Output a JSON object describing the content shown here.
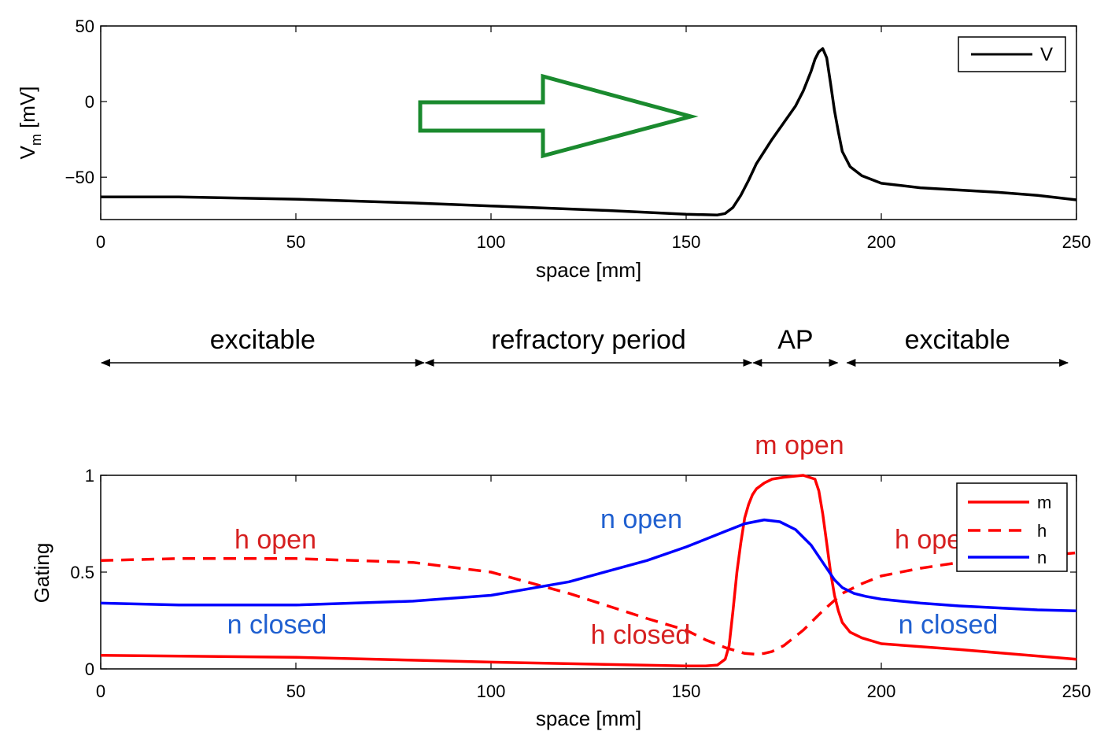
{
  "chart_data": [
    {
      "type": "line",
      "xlabel": "space [mm]",
      "ylabel": "V",
      "ylabel_sub": "m",
      "ylabel_unit": " [mV]",
      "xlim": [
        0,
        250
      ],
      "ylim": [
        -78,
        50
      ],
      "xticks": [
        0,
        50,
        100,
        150,
        200,
        250
      ],
      "yticks": [
        -50,
        0,
        50
      ],
      "grid": false,
      "legend_position": "top-right",
      "series": [
        {
          "name": "V",
          "color": "#000000",
          "dash": "solid",
          "x": [
            0,
            20,
            50,
            80,
            100,
            130,
            150,
            158,
            160,
            162,
            164,
            166,
            168,
            170,
            172,
            175,
            178,
            180,
            182,
            183,
            184,
            185,
            186,
            187,
            188,
            189,
            190,
            192,
            195,
            200,
            210,
            220,
            230,
            240,
            250
          ],
          "y": [
            -63,
            -63,
            -64.5,
            -67,
            -69,
            -72,
            -74.5,
            -75,
            -74,
            -70,
            -62,
            -52,
            -41,
            -33,
            -25,
            -14,
            -3,
            7,
            20,
            28,
            33,
            35,
            29,
            12,
            -6,
            -20,
            -33,
            -43,
            -49,
            -54,
            -57,
            -58.5,
            -60,
            -62,
            -65
          ]
        }
      ],
      "arrow": {
        "color": "#1a8a2e"
      }
    },
    {
      "type": "line",
      "xlabel": "space [mm]",
      "ylabel": "Gating",
      "xlim": [
        0,
        250
      ],
      "ylim": [
        0,
        1
      ],
      "xticks": [
        0,
        50,
        100,
        150,
        200,
        250
      ],
      "yticks": [
        0,
        0.5,
        1
      ],
      "ytick_labels": [
        "0",
        "0.5",
        "1"
      ],
      "grid": false,
      "legend_position": "top-right",
      "series": [
        {
          "name": "m",
          "color": "#ff0000",
          "dash": "solid",
          "x": [
            0,
            50,
            100,
            150,
            155,
            158,
            160,
            161,
            162,
            163,
            164,
            165,
            166,
            167,
            168,
            170,
            172,
            175,
            180,
            183,
            184,
            185,
            186,
            187,
            188,
            189,
            190,
            192,
            195,
            200,
            220,
            250
          ],
          "y": [
            0.07,
            0.06,
            0.035,
            0.015,
            0.015,
            0.02,
            0.05,
            0.12,
            0.3,
            0.5,
            0.65,
            0.78,
            0.85,
            0.9,
            0.93,
            0.96,
            0.98,
            0.99,
            1.0,
            0.98,
            0.92,
            0.8,
            0.65,
            0.5,
            0.38,
            0.3,
            0.24,
            0.19,
            0.16,
            0.13,
            0.1,
            0.05
          ]
        },
        {
          "name": "h",
          "color": "#ff0000",
          "dash": "dashed",
          "x": [
            0,
            20,
            50,
            80,
            100,
            120,
            140,
            150,
            155,
            160,
            165,
            168,
            170,
            172,
            175,
            180,
            185,
            190,
            195,
            200,
            210,
            220,
            230,
            240,
            250
          ],
          "y": [
            0.56,
            0.57,
            0.57,
            0.55,
            0.5,
            0.39,
            0.26,
            0.2,
            0.15,
            0.11,
            0.08,
            0.075,
            0.08,
            0.09,
            0.12,
            0.2,
            0.3,
            0.39,
            0.44,
            0.48,
            0.52,
            0.55,
            0.57,
            0.58,
            0.6
          ]
        },
        {
          "name": "n",
          "color": "#0000ff",
          "dash": "solid",
          "x": [
            0,
            20,
            50,
            80,
            100,
            120,
            140,
            150,
            160,
            165,
            170,
            174,
            178,
            182,
            185,
            188,
            190,
            193,
            196,
            200,
            210,
            220,
            230,
            240,
            250
          ],
          "y": [
            0.34,
            0.33,
            0.33,
            0.35,
            0.38,
            0.45,
            0.56,
            0.63,
            0.71,
            0.75,
            0.77,
            0.76,
            0.72,
            0.64,
            0.55,
            0.46,
            0.42,
            0.39,
            0.375,
            0.36,
            0.34,
            0.325,
            0.315,
            0.305,
            0.3
          ]
        }
      ],
      "annotations": [
        {
          "text": "m open",
          "color": "#d62020"
        },
        {
          "text": "h open",
          "color": "#d62020"
        },
        {
          "text": "n open",
          "color": "#2060d0"
        },
        {
          "text": "h open",
          "color": "#d62020"
        },
        {
          "text": "n closed",
          "color": "#2060d0"
        },
        {
          "text": "h closed",
          "color": "#d62020"
        },
        {
          "text": "n closed",
          "color": "#2060d0"
        }
      ]
    }
  ],
  "regions": [
    {
      "label": "excitable",
      "x_start": 0,
      "x_end": 83
    },
    {
      "label": "refractory period",
      "x_start": 83,
      "x_end": 167
    },
    {
      "label": "AP",
      "x_start": 167,
      "x_end": 189
    },
    {
      "label": "excitable",
      "x_start": 191,
      "x_end": 248
    }
  ]
}
